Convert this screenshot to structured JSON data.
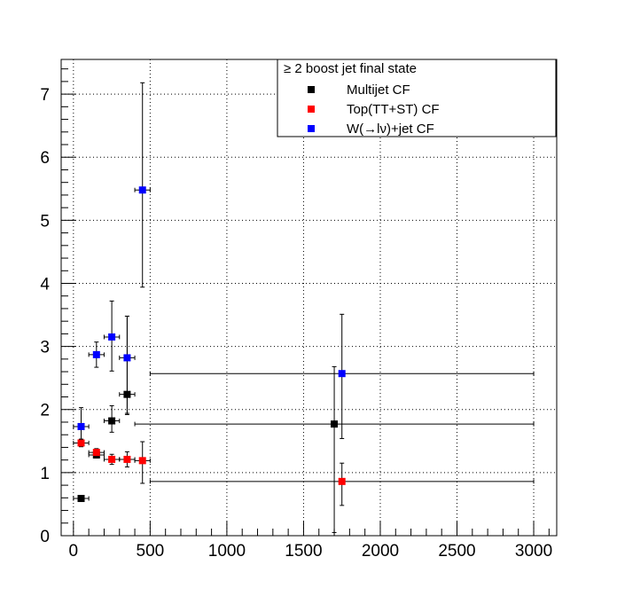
{
  "chart_data": {
    "type": "scatter",
    "title": "",
    "xlabel": "",
    "ylabel": "",
    "xlim": [
      -80,
      3150
    ],
    "ylim": [
      0,
      7.55
    ],
    "grid": true,
    "x_ticks": [
      0,
      500,
      1000,
      1500,
      2000,
      2500,
      3000
    ],
    "x_tick_labels": [
      "0",
      "500",
      "1000",
      "1500",
      "2000",
      "2500",
      "3000"
    ],
    "y_ticks": [
      0,
      1,
      2,
      3,
      4,
      5,
      6,
      7
    ],
    "y_tick_labels": [
      "0",
      "1",
      "2",
      "3",
      "4",
      "5",
      "6",
      "7"
    ],
    "legend": {
      "header": "≥ 2 boost jet final state",
      "placement": "top-right"
    },
    "series": [
      {
        "name": "Multijet CF",
        "color": "#000000",
        "points": [
          {
            "x": 50,
            "y": 0.59,
            "xerr": [
              50,
              50
            ],
            "yerr": [
              0.04,
              0.04
            ]
          },
          {
            "x": 150,
            "y": 1.28,
            "xerr": [
              50,
              50
            ],
            "yerr": [
              0.05,
              0.05
            ]
          },
          {
            "x": 250,
            "y": 1.82,
            "xerr": [
              50,
              50
            ],
            "yerr": [
              0.18,
              0.24
            ]
          },
          {
            "x": 350,
            "y": 2.24,
            "xerr": [
              50,
              50
            ],
            "yerr": [
              0.3,
              1.24
            ]
          },
          {
            "x": 1700,
            "y": 1.77,
            "xerr": [
              1300,
              1300
            ],
            "yerr": [
              1.72,
              0.91
            ]
          }
        ]
      },
      {
        "name": "Top(TT+ST) CF",
        "color": "#ff0000",
        "points": [
          {
            "x": 50,
            "y": 1.47,
            "xerr": [
              50,
              50
            ],
            "yerr": [
              0.06,
              0.06
            ]
          },
          {
            "x": 150,
            "y": 1.32,
            "xerr": [
              50,
              50
            ],
            "yerr": [
              0.06,
              0.06
            ]
          },
          {
            "x": 250,
            "y": 1.21,
            "xerr": [
              50,
              50
            ],
            "yerr": [
              0.08,
              0.08
            ]
          },
          {
            "x": 350,
            "y": 1.21,
            "xerr": [
              50,
              50
            ],
            "yerr": [
              0.12,
              0.12
            ]
          },
          {
            "x": 450,
            "y": 1.19,
            "xerr": [
              50,
              50
            ],
            "yerr": [
              0.36,
              0.3
            ]
          },
          {
            "x": 1750,
            "y": 0.86,
            "xerr": [
              1250,
              1250
            ],
            "yerr": [
              0.38,
              0.29
            ]
          }
        ]
      },
      {
        "name": "W(→lν)+jet CF",
        "color": "#0000ff",
        "points": [
          {
            "x": 50,
            "y": 1.73,
            "xerr": [
              50,
              50
            ],
            "yerr": [
              0.2,
              0.3
            ]
          },
          {
            "x": 150,
            "y": 2.87,
            "xerr": [
              50,
              50
            ],
            "yerr": [
              0.2,
              0.2
            ]
          },
          {
            "x": 250,
            "y": 3.15,
            "xerr": [
              50,
              50
            ],
            "yerr": [
              0.54,
              0.57
            ]
          },
          {
            "x": 350,
            "y": 2.82,
            "xerr": [
              50,
              50
            ],
            "yerr": [
              0.9,
              0.66
            ]
          },
          {
            "x": 450,
            "y": 5.48,
            "xerr": [
              50,
              50
            ],
            "yerr": [
              1.54,
              1.7
            ]
          },
          {
            "x": 1750,
            "y": 2.57,
            "xerr": [
              1250,
              1250
            ],
            "yerr": [
              1.03,
              0.94
            ]
          }
        ]
      }
    ]
  }
}
